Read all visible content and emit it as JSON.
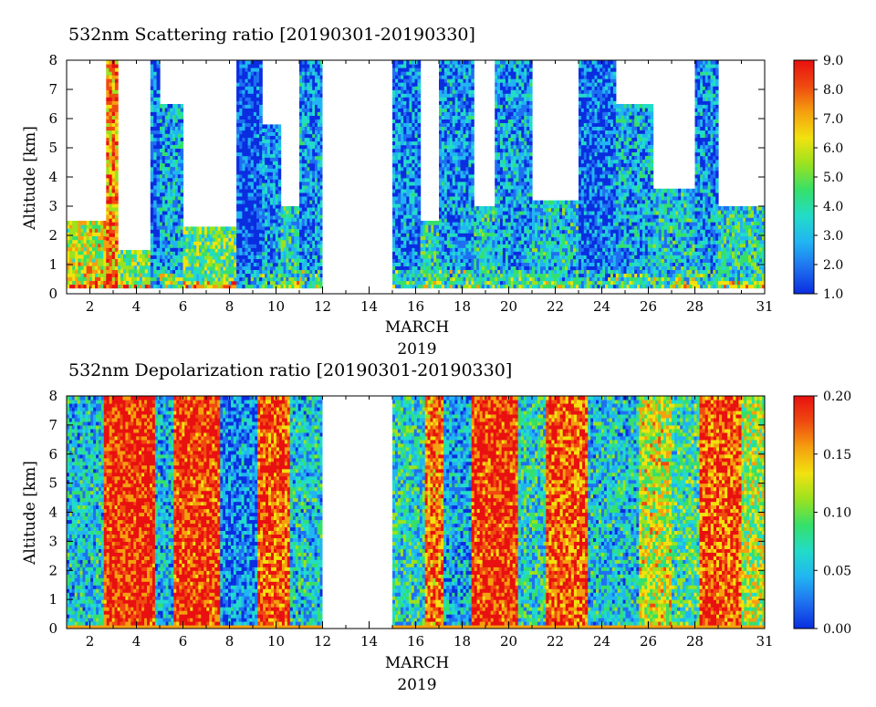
{
  "chart_data": [
    {
      "type": "heatmap",
      "title": "532nm Scattering ratio [20190301-20190330]",
      "xlabel": "MARCH",
      "xlabel2": "2019",
      "ylabel": "Altitude [km]",
      "xlim": [
        1,
        31
      ],
      "ylim": [
        0,
        8
      ],
      "xticks": [
        "2",
        "4",
        "6",
        "8",
        "10",
        "12",
        "14",
        "16",
        "18",
        "20",
        "22",
        "24",
        "26",
        "28",
        "31"
      ],
      "xtick_values": [
        2,
        4,
        6,
        8,
        10,
        12,
        14,
        16,
        18,
        20,
        22,
        24,
        26,
        28,
        31
      ],
      "yticks": [
        "0",
        "1",
        "2",
        "3",
        "4",
        "5",
        "6",
        "7",
        "8"
      ],
      "yrange": [
        0.2,
        8
      ],
      "colorbar": {
        "min": 1.0,
        "max": 9.0,
        "labels": [
          "1.0",
          "2.0",
          "3.0",
          "4.0",
          "5.0",
          "6.0",
          "7.0",
          "8.0",
          "9.0"
        ]
      },
      "data_gaps_days": [
        [
          12.0,
          15.0
        ]
      ],
      "colormap": [
        "#0a2de0",
        "#1f70f0",
        "#21b5f2",
        "#22dcc8",
        "#35e06a",
        "#9be21f",
        "#f2e20f",
        "#f5a00f",
        "#ef4a10",
        "#e81010"
      ],
      "cloud_columns": [
        {
          "x0": 1.0,
          "x1": 2.7,
          "base": 0.2,
          "top": 2.5,
          "level": 0.6
        },
        {
          "x0": 2.7,
          "x1": 3.2,
          "base": 0.2,
          "top": 8.0,
          "level": 0.75
        },
        {
          "x0": 3.2,
          "x1": 4.6,
          "base": 0.2,
          "top": 1.5,
          "level": 0.5
        },
        {
          "x0": 4.6,
          "x1": 5.0,
          "base": 0.2,
          "top": 8.0,
          "level": 0.15
        },
        {
          "x0": 5.0,
          "x1": 6.0,
          "base": 0.2,
          "top": 6.5,
          "level": 0.25
        },
        {
          "x0": 6.0,
          "x1": 8.3,
          "base": 0.2,
          "top": 2.3,
          "level": 0.45
        },
        {
          "x0": 8.3,
          "x1": 9.4,
          "base": 0.2,
          "top": 8.0,
          "level": 0.08
        },
        {
          "x0": 9.4,
          "x1": 10.2,
          "base": 0.2,
          "top": 5.8,
          "level": 0.2
        },
        {
          "x0": 10.2,
          "x1": 11.0,
          "base": 0.2,
          "top": 3.0,
          "level": 0.35
        },
        {
          "x0": 11.0,
          "x1": 12.0,
          "base": 0.2,
          "top": 8.0,
          "level": 0.2
        },
        {
          "x0": 15.0,
          "x1": 16.2,
          "base": 0.2,
          "top": 8.0,
          "level": 0.18
        },
        {
          "x0": 16.2,
          "x1": 17.0,
          "base": 0.2,
          "top": 2.5,
          "level": 0.35
        },
        {
          "x0": 17.0,
          "x1": 18.5,
          "base": 0.2,
          "top": 8.0,
          "level": 0.2
        },
        {
          "x0": 18.5,
          "x1": 19.4,
          "base": 0.2,
          "top": 3.0,
          "level": 0.3
        },
        {
          "x0": 19.4,
          "x1": 21.0,
          "base": 0.2,
          "top": 8.0,
          "level": 0.22
        },
        {
          "x0": 21.0,
          "x1": 23.0,
          "base": 0.2,
          "top": 3.2,
          "level": 0.3
        },
        {
          "x0": 23.0,
          "x1": 24.6,
          "base": 0.2,
          "top": 8.0,
          "level": 0.12
        },
        {
          "x0": 24.6,
          "x1": 26.2,
          "base": 0.2,
          "top": 6.5,
          "level": 0.25
        },
        {
          "x0": 26.2,
          "x1": 28.0,
          "base": 0.2,
          "top": 3.6,
          "level": 0.3
        },
        {
          "x0": 28.0,
          "x1": 29.0,
          "base": 0.2,
          "top": 8.0,
          "level": 0.2
        },
        {
          "x0": 29.0,
          "x1": 31.0,
          "base": 0.2,
          "top": 3.0,
          "level": 0.35
        }
      ]
    },
    {
      "type": "heatmap",
      "title": "532nm Depolarization ratio [20190301-20190330]",
      "xlabel": "MARCH",
      "xlabel2": "2019",
      "ylabel": "Altitude [km]",
      "xlim": [
        1,
        31
      ],
      "ylim": [
        0,
        8
      ],
      "xticks": [
        "2",
        "4",
        "6",
        "8",
        "10",
        "12",
        "14",
        "16",
        "18",
        "20",
        "22",
        "24",
        "26",
        "28",
        "31"
      ],
      "xtick_values": [
        2,
        4,
        6,
        8,
        10,
        12,
        14,
        16,
        18,
        20,
        22,
        24,
        26,
        28,
        31
      ],
      "yticks": [
        "0",
        "1",
        "2",
        "3",
        "4",
        "5",
        "6",
        "7",
        "8"
      ],
      "yrange": [
        0.0,
        8
      ],
      "colorbar": {
        "min": 0.0,
        "max": 0.2,
        "labels": [
          "0.00",
          "0.05",
          "0.10",
          "0.15",
          "0.20"
        ]
      },
      "data_gaps_days": [
        [
          12.0,
          15.0
        ]
      ],
      "colormap": [
        "#0a2de0",
        "#1f70f0",
        "#21b5f2",
        "#22dcc8",
        "#35e06a",
        "#9be21f",
        "#f2e20f",
        "#f5a00f",
        "#ef4a10",
        "#e81010"
      ],
      "cloud_columns": [
        {
          "x0": 1.0,
          "x1": 2.6,
          "base": 0.0,
          "top": 8.0,
          "level": 0.3
        },
        {
          "x0": 2.6,
          "x1": 4.8,
          "base": 0.0,
          "top": 8.0,
          "level": 0.92
        },
        {
          "x0": 4.8,
          "x1": 5.6,
          "base": 0.0,
          "top": 8.0,
          "level": 0.28
        },
        {
          "x0": 5.6,
          "x1": 7.6,
          "base": 0.0,
          "top": 8.0,
          "level": 0.9
        },
        {
          "x0": 7.6,
          "x1": 9.2,
          "base": 0.0,
          "top": 8.0,
          "level": 0.18
        },
        {
          "x0": 9.2,
          "x1": 10.6,
          "base": 0.0,
          "top": 8.0,
          "level": 0.85
        },
        {
          "x0": 10.6,
          "x1": 12.0,
          "base": 0.0,
          "top": 8.0,
          "level": 0.3
        },
        {
          "x0": 15.0,
          "x1": 16.4,
          "base": 0.0,
          "top": 8.0,
          "level": 0.35
        },
        {
          "x0": 16.4,
          "x1": 17.2,
          "base": 0.0,
          "top": 8.0,
          "level": 0.8
        },
        {
          "x0": 17.2,
          "x1": 18.4,
          "base": 0.0,
          "top": 8.0,
          "level": 0.25
        },
        {
          "x0": 18.4,
          "x1": 20.4,
          "base": 0.0,
          "top": 8.0,
          "level": 0.9
        },
        {
          "x0": 20.4,
          "x1": 21.6,
          "base": 0.0,
          "top": 8.0,
          "level": 0.35
        },
        {
          "x0": 21.6,
          "x1": 23.4,
          "base": 0.0,
          "top": 8.0,
          "level": 0.85
        },
        {
          "x0": 23.4,
          "x1": 25.6,
          "base": 0.0,
          "top": 8.0,
          "level": 0.3
        },
        {
          "x0": 25.6,
          "x1": 27.0,
          "base": 0.0,
          "top": 8.0,
          "level": 0.6
        },
        {
          "x0": 27.0,
          "x1": 28.2,
          "base": 0.0,
          "top": 8.0,
          "level": 0.4
        },
        {
          "x0": 28.2,
          "x1": 30.0,
          "base": 0.0,
          "top": 8.0,
          "level": 0.85
        },
        {
          "x0": 30.0,
          "x1": 31.0,
          "base": 0.0,
          "top": 8.0,
          "level": 0.55
        }
      ]
    }
  ]
}
